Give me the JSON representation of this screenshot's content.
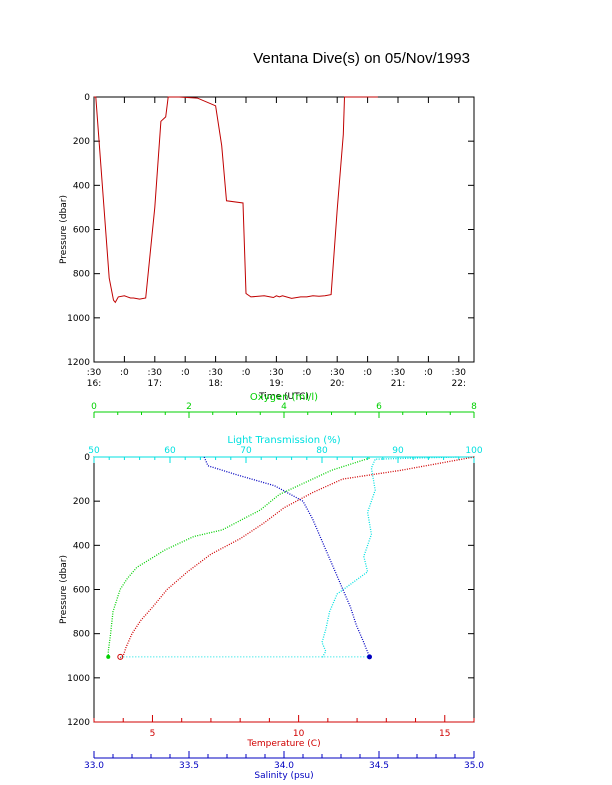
{
  "title": "Ventana Dive(s) on 05/Nov/1993",
  "colors": {
    "axis": "#000000",
    "oxygen": "#00d000",
    "transmission": "#00e0e0",
    "temperature": "#d00000",
    "salinity": "#0000c0",
    "trace": "#c00000"
  },
  "chart_data": [
    {
      "type": "line",
      "title": "Ventana Dive(s) on 05/Nov/1993",
      "xlabel": "Time (UTC)",
      "ylabel": "Pressure (dbar)",
      "xlim": [
        16.5,
        22.75
      ],
      "ylim": [
        1200,
        0
      ],
      "y_ticks": [
        "0",
        "200",
        "400",
        "600",
        "800",
        "1000",
        "1200"
      ],
      "x_ticks_minor": [
        ":30",
        ":0",
        ":30",
        ":0",
        ":30",
        ":0",
        ":30",
        ":0",
        ":30",
        ":0",
        ":30",
        ":0",
        ":30"
      ],
      "x_ticks_major": [
        "16:",
        "17:",
        "18:",
        "19:",
        "20:",
        "21:",
        "22:"
      ],
      "series": [
        {
          "x": [
            16.5,
            16.53,
            16.75,
            16.82,
            16.85,
            16.9,
            17.0,
            17.1,
            17.15,
            17.25,
            17.35,
            17.5,
            17.6,
            17.66,
            17.68,
            17.72,
            17.9,
            18.2,
            18.5,
            18.6,
            18.68,
            18.95,
            19.0,
            19.08,
            19.3,
            19.45,
            19.5,
            19.55,
            19.6,
            19.75,
            19.9,
            20.0,
            20.1,
            20.2,
            20.3,
            20.4,
            20.5,
            20.6,
            20.62,
            20.8,
            20.95,
            21.05,
            21.1,
            21.17
          ],
          "y": [
            0,
            0,
            820,
            920,
            930,
            905,
            900,
            910,
            910,
            915,
            910,
            500,
            110,
            95,
            90,
            0,
            0,
            5,
            40,
            220,
            470,
            480,
            890,
            905,
            900,
            908,
            900,
            905,
            900,
            912,
            905,
            905,
            900,
            902,
            900,
            895,
            510,
            170,
            0,
            0,
            0,
            0,
            0,
            0
          ]
        }
      ]
    },
    {
      "type": "scatter",
      "ylabel": "Pressure (dbar)",
      "ylim": [
        1200,
        0
      ],
      "y_ticks": [
        "0",
        "200",
        "400",
        "600",
        "800",
        "1000",
        "1200"
      ],
      "axes": [
        {
          "label": "Oxygen (ml/l)",
          "range": [
            0,
            8
          ],
          "ticks": [
            "0",
            "2",
            "4",
            "6",
            "8"
          ]
        },
        {
          "label": "Light Transmission (%)",
          "range": [
            50,
            100
          ],
          "ticks": [
            "50",
            "60",
            "70",
            "80",
            "90",
            "100"
          ]
        },
        {
          "label": "Temperature (C)",
          "range": [
            3,
            16
          ],
          "ticks": [
            "5",
            "10",
            "15"
          ]
        },
        {
          "label": "Salinity (psu)",
          "range": [
            33.0,
            35.0
          ],
          "ticks": [
            "33.0",
            "33.5",
            "34.0",
            "34.5",
            "35.0"
          ]
        }
      ],
      "series": [
        {
          "name": "Oxygen",
          "axis": 0,
          "x": [
            5.8,
            5.0,
            4.4,
            3.9,
            3.5,
            2.7,
            2.1,
            1.5,
            0.9,
            0.7,
            0.55,
            0.4,
            0.35,
            0.3,
            0.3
          ],
          "y": [
            5,
            60,
            120,
            170,
            240,
            330,
            360,
            420,
            500,
            550,
            600,
            700,
            800,
            880,
            910
          ]
        },
        {
          "name": "Light Transmission",
          "axis": 1,
          "x": [
            98,
            92,
            87,
            86.5,
            87,
            86,
            86.5,
            85.5,
            86,
            84,
            82,
            81,
            80.5,
            80,
            80.5,
            80
          ],
          "y": [
            0,
            5,
            10,
            50,
            150,
            250,
            350,
            450,
            520,
            570,
            620,
            700,
            780,
            840,
            880,
            910
          ]
        },
        {
          "name": "Temperature",
          "axis": 2,
          "x": [
            16,
            13.5,
            11.5,
            10.5,
            9.5,
            8.8,
            8.0,
            7.0,
            6.2,
            5.5,
            5.0,
            4.6,
            4.3,
            4.1,
            4.0,
            3.9
          ],
          "y": [
            0,
            60,
            100,
            160,
            230,
            300,
            370,
            440,
            520,
            600,
            680,
            740,
            800,
            860,
            900,
            910
          ]
        },
        {
          "name": "Salinity",
          "axis": 3,
          "x": [
            33.58,
            33.6,
            33.75,
            33.95,
            34.1,
            34.15,
            34.2,
            34.25,
            34.3,
            34.35,
            34.38,
            34.42,
            34.45
          ],
          "y": [
            0,
            40,
            80,
            130,
            200,
            280,
            380,
            480,
            580,
            680,
            760,
            840,
            905
          ]
        }
      ],
      "extra_scatter_y": 905
    }
  ]
}
